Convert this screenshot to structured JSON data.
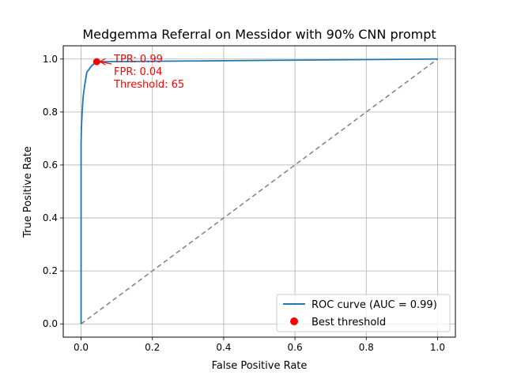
{
  "chart_data": {
    "type": "line",
    "title": "Medgemma Referral on Messidor with 90% CNN prompt",
    "xlabel": "False Positive Rate",
    "ylabel": "True Positive Rate",
    "xlim": [
      -0.05,
      1.05
    ],
    "ylim": [
      -0.05,
      1.05
    ],
    "xticks": [
      0.0,
      0.2,
      0.4,
      0.6,
      0.8,
      1.0
    ],
    "yticks": [
      0.0,
      0.2,
      0.4,
      0.6,
      0.8,
      1.0
    ],
    "xtick_labels": [
      "0.0",
      "0.2",
      "0.4",
      "0.6",
      "0.8",
      "1.0"
    ],
    "ytick_labels": [
      "0.0",
      "0.2",
      "0.4",
      "0.6",
      "0.8",
      "1.0"
    ],
    "grid": true,
    "legend_position": "bottom-right",
    "series": [
      {
        "name": "ROC curve (AUC = 0.99)",
        "color": "#1f77b4",
        "x": [
          0.0,
          0.0,
          0.001,
          0.003,
          0.006,
          0.01,
          0.016,
          0.03,
          0.044,
          1.0
        ],
        "y": [
          0.0,
          0.68,
          0.74,
          0.8,
          0.86,
          0.9,
          0.95,
          0.975,
          0.99,
          1.0
        ]
      },
      {
        "name": "",
        "style": "dashed",
        "color": "#808080",
        "x": [
          0.0,
          1.0
        ],
        "y": [
          0.0,
          1.0
        ]
      }
    ],
    "best_point": {
      "name": "Best threshold",
      "color": "#ff0000",
      "x": 0.044,
      "y": 0.99
    },
    "annotation": {
      "color": "#ff0000",
      "lines": [
        "TPR: 0.99",
        "FPR: 0.04",
        "Threshold: 65"
      ]
    }
  }
}
